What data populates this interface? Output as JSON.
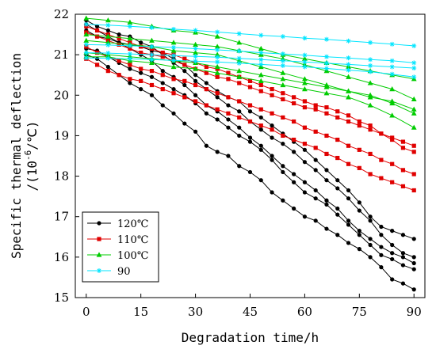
{
  "chart_data": {
    "type": "line",
    "xlabel": "Degradation time/h",
    "ylabel_line1": "Specific thermal deflection",
    "ylabel_line2": "/(10",
    "ylabel_sup": "-6",
    "ylabel_line2_end": "/℃)",
    "xlim": [
      -3,
      93
    ],
    "ylim": [
      15,
      22
    ],
    "x_ticks": [
      0,
      15,
      30,
      45,
      60,
      75,
      90
    ],
    "y_ticks": [
      15,
      16,
      17,
      18,
      19,
      20,
      21,
      22
    ],
    "legend_position": "bottom-left",
    "grid": false,
    "series": [
      {
        "name": "120℃",
        "color": "#000000",
        "marker": "circle",
        "lines": [
          {
            "x": [
              0,
              3,
              6,
              9,
              12,
              15,
              18,
              21,
              24,
              27,
              30,
              33,
              36,
              39,
              42,
              45,
              48,
              51,
              54,
              57,
              60,
              63,
              66,
              69,
              72,
              75,
              78,
              81,
              84,
              87,
              90
            ],
            "y": [
              21.0,
              20.9,
              20.7,
              20.5,
              20.3,
              20.15,
              20.0,
              19.75,
              19.55,
              19.3,
              19.1,
              18.75,
              18.6,
              18.5,
              18.25,
              18.1,
              17.9,
              17.6,
              17.4,
              17.2,
              17.0,
              16.9,
              16.7,
              16.55,
              16.35,
              16.2,
              16.0,
              15.75,
              15.45,
              15.35,
              15.2
            ]
          },
          {
            "x": [
              0,
              3,
              6,
              9,
              12,
              15,
              18,
              21,
              24,
              27,
              30,
              33,
              36,
              39,
              42,
              45,
              48,
              51,
              54,
              57,
              60,
              63,
              66,
              69,
              72,
              75,
              78,
              81,
              84,
              87,
              90
            ],
            "y": [
              21.15,
              21.1,
              20.95,
              20.8,
              20.65,
              20.55,
              20.45,
              20.3,
              20.15,
              20.0,
              19.8,
              19.55,
              19.4,
              19.2,
              19.0,
              18.85,
              18.65,
              18.4,
              18.1,
              17.85,
              17.6,
              17.45,
              17.3,
              17.05,
              16.8,
              16.55,
              16.3,
              16.05,
              15.95,
              15.8,
              15.7
            ]
          },
          {
            "x": [
              0,
              3,
              6,
              9,
              12,
              15,
              18,
              21,
              24,
              27,
              30,
              33,
              36,
              39,
              42,
              45,
              48,
              51,
              54,
              57,
              60,
              63,
              66,
              69,
              72,
              75,
              78,
              81,
              84,
              87,
              90
            ],
            "y": [
              21.75,
              21.6,
              21.45,
              21.3,
              21.15,
              21.0,
              20.85,
              20.6,
              20.45,
              20.25,
              20.0,
              19.75,
              19.6,
              19.4,
              19.2,
              18.95,
              18.75,
              18.5,
              18.25,
              18.05,
              17.85,
              17.65,
              17.4,
              17.2,
              16.9,
              16.65,
              16.45,
              16.25,
              16.1,
              16.0,
              15.85
            ]
          },
          {
            "x": [
              0,
              3,
              6,
              9,
              12,
              15,
              18,
              21,
              24,
              27,
              30,
              33,
              36,
              39,
              42,
              45,
              48,
              51,
              54,
              57,
              60,
              63,
              66,
              69,
              72,
              75,
              78,
              81,
              84,
              87,
              90
            ],
            "y": [
              21.85,
              21.7,
              21.6,
              21.5,
              21.45,
              21.3,
              21.2,
              21.0,
              20.8,
              20.6,
              20.35,
              20.15,
              19.95,
              19.75,
              19.6,
              19.35,
              19.15,
              18.95,
              18.8,
              18.6,
              18.35,
              18.15,
              17.9,
              17.7,
              17.45,
              17.15,
              16.9,
              16.55,
              16.3,
              16.1,
              16.0
            ]
          },
          {
            "x": [
              0,
              3,
              6,
              9,
              12,
              15,
              18,
              21,
              24,
              27,
              30,
              33,
              36,
              39,
              42,
              45,
              48,
              51,
              54,
              57,
              60,
              63,
              66,
              69,
              72,
              75,
              78,
              81,
              84,
              87,
              90
            ],
            "y": [
              21.6,
              21.45,
              21.4,
              21.3,
              21.25,
              21.2,
              21.1,
              21.05,
              20.9,
              20.75,
              20.5,
              20.3,
              20.1,
              19.95,
              19.85,
              19.6,
              19.45,
              19.25,
              19.05,
              18.85,
              18.65,
              18.4,
              18.15,
              17.9,
              17.65,
              17.35,
              17.0,
              16.75,
              16.65,
              16.55,
              16.45
            ]
          }
        ]
      },
      {
        "name": "110℃",
        "color": "#e00000",
        "marker": "square",
        "lines": [
          {
            "x": [
              0,
              3,
              6,
              9,
              12,
              15,
              18,
              21,
              24,
              27,
              30,
              33,
              36,
              39,
              42,
              45,
              48,
              51,
              54,
              57,
              60,
              63,
              66,
              69,
              72,
              75,
              78,
              81,
              84,
              87,
              90
            ],
            "y": [
              20.9,
              20.75,
              20.6,
              20.5,
              20.4,
              20.35,
              20.25,
              20.15,
              20.05,
              19.95,
              19.85,
              19.75,
              19.65,
              19.55,
              19.45,
              19.35,
              19.25,
              19.15,
              19.0,
              18.9,
              18.8,
              18.7,
              18.55,
              18.45,
              18.3,
              18.2,
              18.05,
              17.95,
              17.85,
              17.75,
              17.65
            ]
          },
          {
            "x": [
              0,
              3,
              6,
              9,
              12,
              15,
              18,
              21,
              24,
              27,
              30,
              33,
              36,
              39,
              42,
              45,
              48,
              51,
              54,
              57,
              60,
              63,
              66,
              69,
              72,
              75,
              78,
              81,
              84,
              87,
              90
            ],
            "y": [
              21.2,
              21.05,
              20.95,
              20.85,
              20.75,
              20.65,
              20.6,
              20.5,
              20.4,
              20.35,
              20.25,
              20.15,
              20.05,
              19.95,
              19.85,
              19.75,
              19.65,
              19.55,
              19.45,
              19.35,
              19.2,
              19.1,
              19.0,
              18.9,
              18.75,
              18.65,
              18.55,
              18.4,
              18.3,
              18.15,
              18.05
            ]
          },
          {
            "x": [
              0,
              3,
              6,
              9,
              12,
              15,
              18,
              21,
              24,
              27,
              30,
              33,
              36,
              39,
              42,
              45,
              48,
              51,
              54,
              57,
              60,
              63,
              66,
              69,
              72,
              75,
              78,
              81,
              84,
              87,
              90
            ],
            "y": [
              21.55,
              21.45,
              21.35,
              21.25,
              21.15,
              21.05,
              21.0,
              20.95,
              20.85,
              20.75,
              20.65,
              20.55,
              20.45,
              20.4,
              20.3,
              20.2,
              20.1,
              20.0,
              19.9,
              19.8,
              19.7,
              19.65,
              19.55,
              19.45,
              19.35,
              19.25,
              19.15,
              19.05,
              18.95,
              18.85,
              18.75
            ]
          },
          {
            "x": [
              0,
              3,
              6,
              9,
              12,
              15,
              18,
              21,
              24,
              27,
              30,
              33,
              36,
              39,
              42,
              45,
              48,
              51,
              54,
              57,
              60,
              63,
              66,
              69,
              72,
              75,
              78,
              81,
              84,
              87,
              90
            ],
            "y": [
              21.7,
              21.6,
              21.5,
              21.4,
              21.3,
              21.2,
              21.15,
              21.05,
              21.0,
              20.9,
              20.8,
              20.7,
              20.65,
              20.55,
              20.45,
              20.35,
              20.25,
              20.15,
              20.05,
              19.95,
              19.85,
              19.75,
              19.7,
              19.6,
              19.5,
              19.35,
              19.25,
              19.05,
              18.9,
              18.7,
              18.6
            ]
          }
        ]
      },
      {
        "name": "100℃",
        "color": "#00cc00",
        "marker": "triangle",
        "lines": [
          {
            "x": [
              0,
              6,
              12,
              18,
              24,
              30,
              36,
              42,
              48,
              54,
              60,
              66,
              72,
              78,
              84,
              90
            ],
            "y": [
              20.95,
              20.95,
              20.85,
              20.8,
              20.7,
              20.65,
              20.55,
              20.45,
              20.35,
              20.25,
              20.15,
              20.05,
              19.95,
              19.75,
              19.5,
              19.2
            ]
          },
          {
            "x": [
              0,
              6,
              12,
              18,
              24,
              30,
              36,
              42,
              48,
              54,
              60,
              66,
              72,
              78,
              84,
              90
            ],
            "y": [
              21.05,
              21.0,
              20.95,
              20.9,
              20.85,
              20.8,
              20.7,
              20.6,
              20.5,
              20.4,
              20.3,
              20.2,
              20.1,
              20.0,
              19.8,
              19.55
            ]
          },
          {
            "x": [
              0,
              6,
              12,
              18,
              24,
              30,
              36,
              42,
              48,
              54,
              60,
              66,
              72,
              78,
              84,
              90
            ],
            "y": [
              21.35,
              21.3,
              21.25,
              21.2,
              21.1,
              21.05,
              21.0,
              20.85,
              20.7,
              20.55,
              20.4,
              20.25,
              20.1,
              19.95,
              19.85,
              19.65
            ]
          },
          {
            "x": [
              0,
              6,
              12,
              18,
              24,
              30,
              36,
              42,
              48,
              54,
              60,
              66,
              72,
              78,
              84,
              90
            ],
            "y": [
              21.5,
              21.45,
              21.4,
              21.35,
              21.3,
              21.25,
              21.2,
              21.1,
              21.0,
              20.9,
              20.75,
              20.6,
              20.45,
              20.3,
              20.15,
              19.9
            ]
          },
          {
            "x": [
              0,
              6,
              12,
              18,
              24,
              30,
              36,
              42,
              48,
              54,
              60,
              66,
              72,
              78,
              84,
              90
            ],
            "y": [
              21.9,
              21.85,
              21.8,
              21.7,
              21.6,
              21.55,
              21.45,
              21.3,
              21.15,
              21.0,
              20.9,
              20.8,
              20.7,
              20.6,
              20.5,
              20.4
            ]
          }
        ]
      },
      {
        "name": "90",
        "color": "#00e5ff",
        "marker": "star",
        "lines": [
          {
            "x": [
              0,
              6,
              12,
              18,
              24,
              30,
              36,
              42,
              48,
              54,
              60,
              66,
              72,
              78,
              84,
              90
            ],
            "y": [
              21.75,
              21.73,
              21.7,
              21.67,
              21.63,
              21.6,
              21.56,
              21.52,
              21.48,
              21.45,
              21.41,
              21.38,
              21.34,
              21.3,
              21.26,
              21.22
            ]
          },
          {
            "x": [
              0,
              6,
              12,
              18,
              24,
              30,
              36,
              42,
              48,
              54,
              60,
              66,
              72,
              78,
              84,
              90
            ],
            "y": [
              21.25,
              21.24,
              21.22,
              21.2,
              21.18,
              21.15,
              21.12,
              21.09,
              21.05,
              21.02,
              20.99,
              20.95,
              20.92,
              20.88,
              20.85,
              20.8
            ]
          },
          {
            "x": [
              0,
              6,
              12,
              18,
              24,
              30,
              36,
              42,
              48,
              54,
              60,
              66,
              72,
              78,
              84,
              90
            ],
            "y": [
              21.05,
              21.04,
              21.02,
              21.0,
              20.98,
              20.96,
              20.94,
              20.91,
              20.88,
              20.85,
              20.82,
              20.79,
              20.76,
              20.73,
              20.7,
              20.67
            ]
          },
          {
            "x": [
              0,
              6,
              12,
              18,
              24,
              30,
              36,
              42,
              48,
              54,
              60,
              66,
              72,
              78,
              84,
              90
            ],
            "y": [
              20.92,
              20.91,
              20.9,
              20.88,
              20.86,
              20.84,
              20.82,
              20.79,
              20.76,
              20.73,
              20.7,
              20.66,
              20.62,
              20.58,
              20.52,
              20.45
            ]
          }
        ]
      }
    ]
  }
}
